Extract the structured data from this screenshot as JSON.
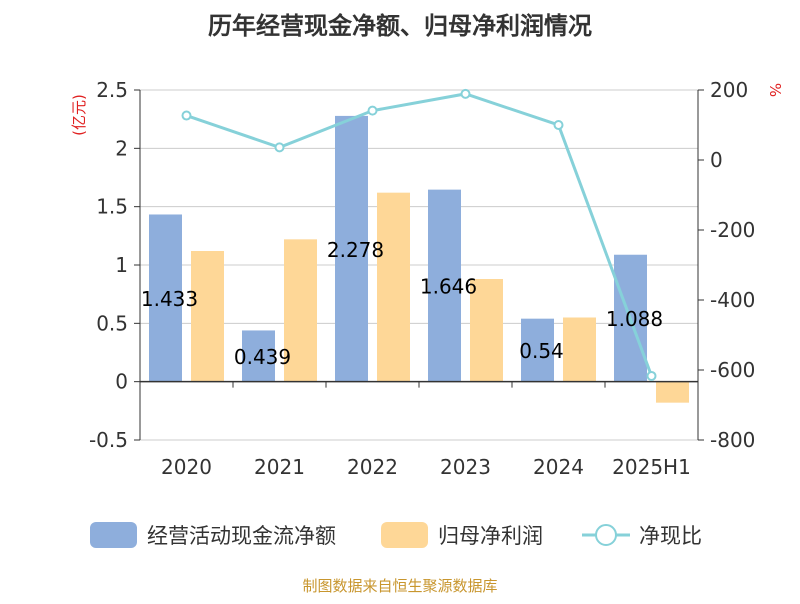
{
  "chart_data": {
    "type": "bar",
    "title": "历年经营现金净额、归母净利润情况",
    "categories": [
      "2020",
      "2021",
      "2022",
      "2023",
      "2024",
      "2025H1"
    ],
    "y_left": {
      "unit_label": "(亿元)",
      "range": [
        -0.5,
        2.5
      ],
      "ticks": [
        -0.5,
        0,
        0.5,
        1,
        1.5,
        2,
        2.5
      ]
    },
    "y_right": {
      "unit_label": "%",
      "range": [
        -800,
        200
      ],
      "ticks": [
        -800,
        -600,
        -400,
        -200,
        0,
        200
      ]
    },
    "series": [
      {
        "name": "经营活动现金流净额",
        "kind": "bar",
        "axis": "left",
        "color": "#8eaedc",
        "values": [
          1.433,
          0.439,
          2.278,
          1.646,
          0.54,
          1.088
        ],
        "data_labels": [
          "1.433",
          "0.439",
          "2.278",
          "1.646",
          "0.54",
          "1.088"
        ]
      },
      {
        "name": "归母净利润",
        "kind": "bar",
        "axis": "left",
        "color": "#fed797",
        "values": [
          1.12,
          1.22,
          1.62,
          0.88,
          0.55,
          -0.18
        ]
      },
      {
        "name": "净现比",
        "kind": "line",
        "axis": "right",
        "color": "#86d1d9",
        "values": [
          127,
          36,
          141,
          189,
          100,
          -617
        ]
      }
    ],
    "grid": true,
    "legend_position": "bottom"
  },
  "footer": {
    "source": "制图数据来自恒生聚源数据库"
  },
  "colors": {
    "axis_unit": "#e02020",
    "text": "#333333",
    "footer": "#c8962e",
    "grid": "#cccccc"
  }
}
